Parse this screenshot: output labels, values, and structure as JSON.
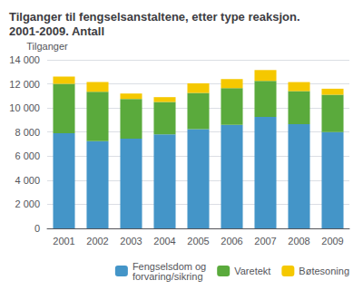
{
  "chart_data": {
    "type": "bar",
    "title": "Tilganger til fengselsanstaltene, etter type reaksjon. 2001-2009. Antall",
    "ylabel": "Tilganger",
    "categories": [
      "2001",
      "2002",
      "2003",
      "2004",
      "2005",
      "2006",
      "2007",
      "2008",
      "2009"
    ],
    "series": [
      {
        "name": "Fengselsdom og\nforvaring/sikring",
        "color": "#4495c8",
        "values": [
          7900,
          7250,
          7450,
          7800,
          8250,
          8600,
          9250,
          8650,
          8000
        ]
      },
      {
        "name": "Varetekt",
        "color": "#5aaa3c",
        "values": [
          4100,
          4100,
          3300,
          2700,
          3000,
          3050,
          3000,
          2750,
          3100
        ]
      },
      {
        "name": "Bøtesoning",
        "color": "#f5c800",
        "values": [
          600,
          800,
          450,
          400,
          800,
          750,
          900,
          750,
          500
        ]
      }
    ],
    "stacked": true,
    "ylim": [
      0,
      14000
    ],
    "yticks": [
      0,
      {
        "value": 2000,
        "label": "2 000"
      },
      {
        "value": 4000,
        "label": "4 000"
      },
      {
        "value": 6000,
        "label": "6 000"
      },
      {
        "value": 8000,
        "label": "8 000"
      },
      {
        "value": 10000,
        "label": "10 000"
      },
      {
        "value": 12000,
        "label": "12 000"
      },
      {
        "value": 14000,
        "label": "14 000"
      }
    ],
    "grid": true,
    "legend": "lower right"
  }
}
